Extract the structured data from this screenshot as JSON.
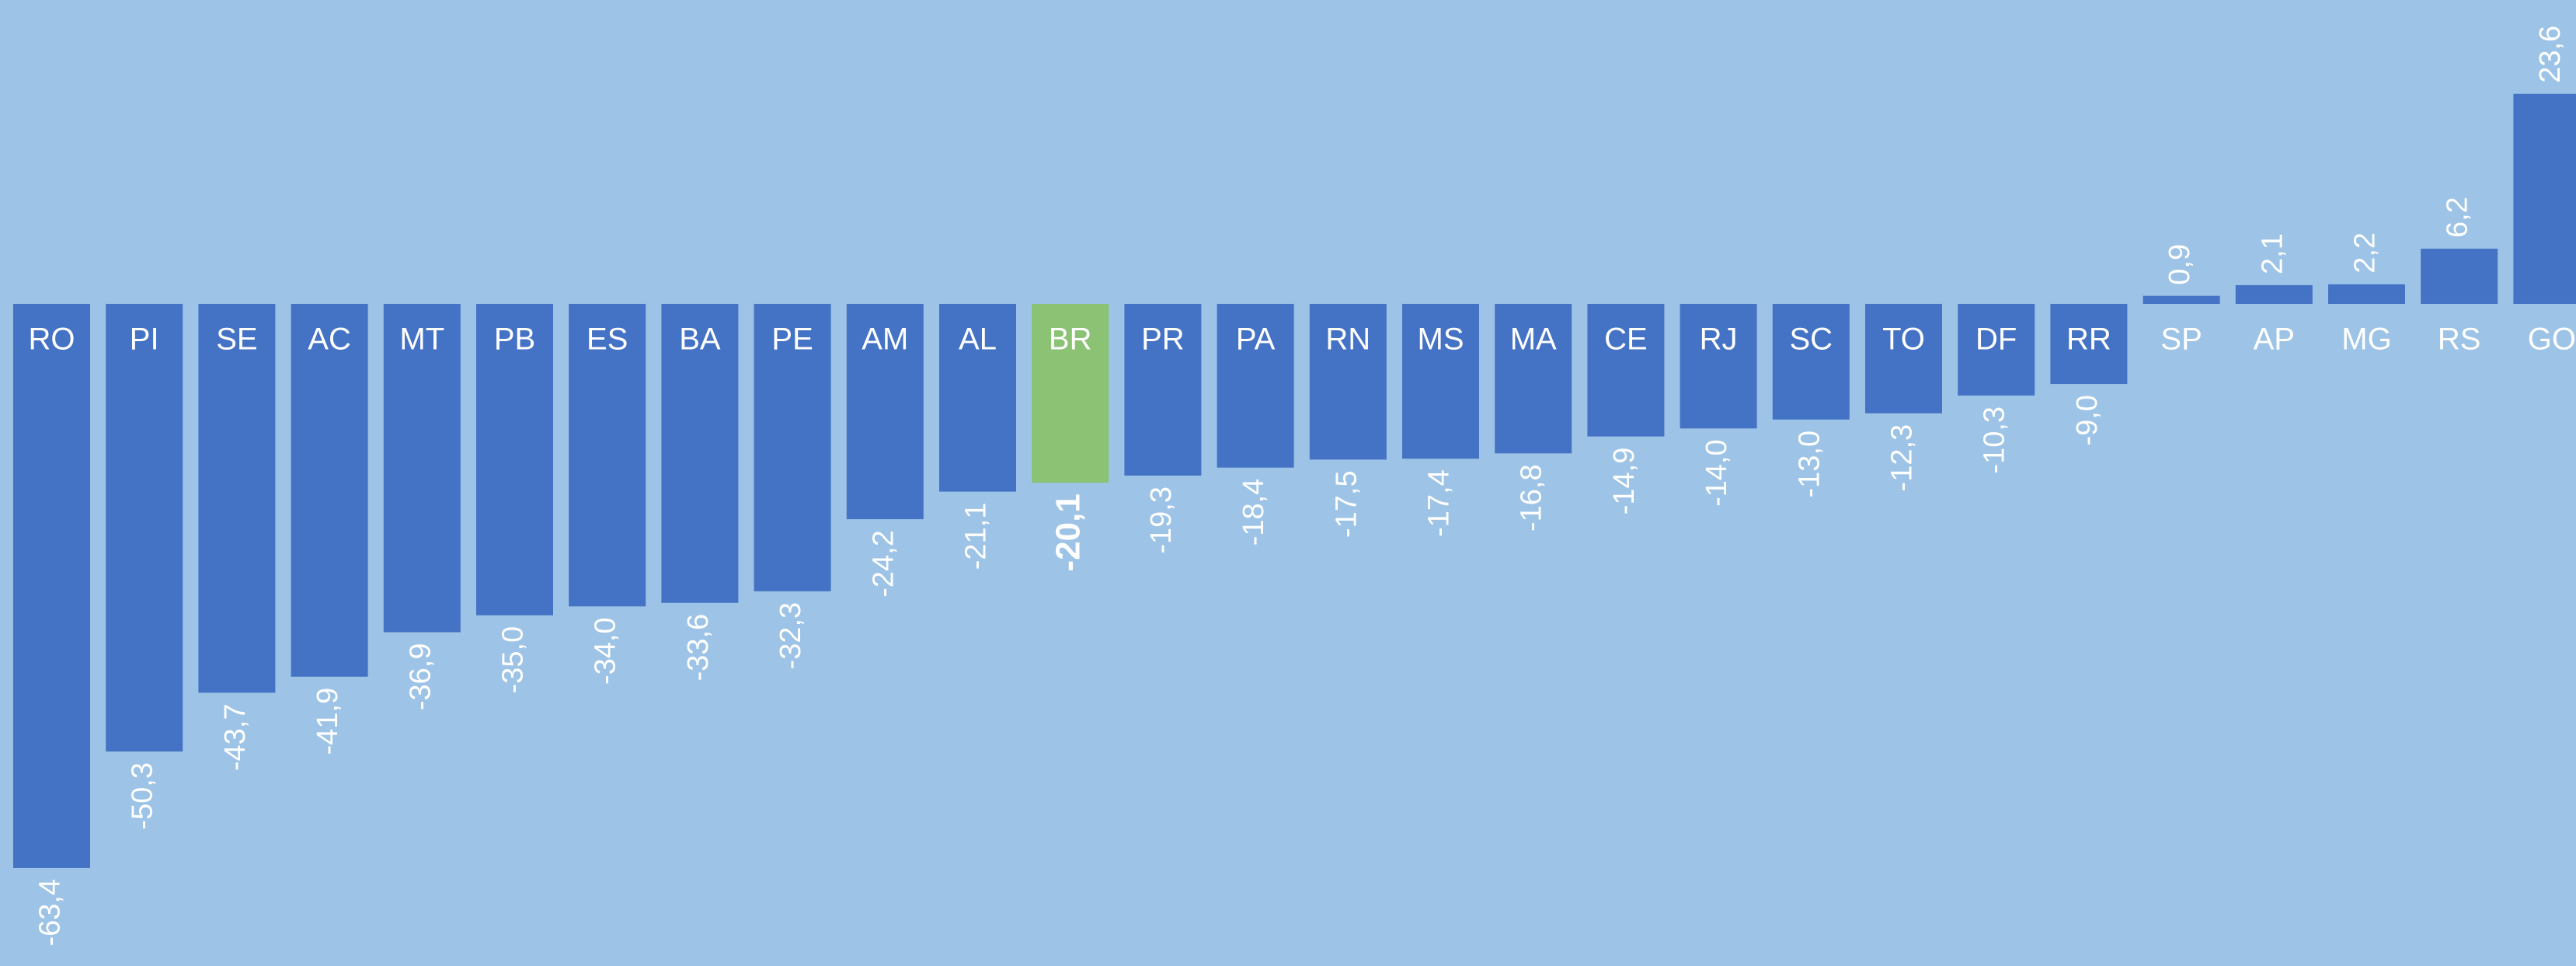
{
  "chart_data": {
    "type": "bar",
    "categories": [
      "RO",
      "PI",
      "SE",
      "AC",
      "MT",
      "PB",
      "ES",
      "BA",
      "PE",
      "AM",
      "AL",
      "BR",
      "PR",
      "PA",
      "RN",
      "MS",
      "MA",
      "CE",
      "RJ",
      "SC",
      "TO",
      "DF",
      "RR",
      "SP",
      "AP",
      "MG",
      "RS",
      "GO"
    ],
    "values": [
      -63.4,
      -50.3,
      -43.7,
      -41.9,
      -36.9,
      -35.0,
      -34.0,
      -33.6,
      -32.3,
      -24.2,
      -21.1,
      -20.1,
      -19.3,
      -18.4,
      -17.5,
      -17.4,
      -16.8,
      -14.9,
      -14.0,
      -13.0,
      -12.3,
      -10.3,
      -9.0,
      0.9,
      2.1,
      2.2,
      6.2,
      23.6
    ],
    "value_labels": [
      "-63,4",
      "-50,3",
      "-43,7",
      "-41,9",
      "-36,9",
      "-35,0",
      "-34,0",
      "-33,6",
      "-32,3",
      "-24,2",
      "-21,1",
      "-20,1",
      "-19,3",
      "-18,4",
      "-17,5",
      "-17,4",
      "-16,8",
      "-14,9",
      "-14,0",
      "-13,0",
      "-12,3",
      "-10,3",
      "-9,0",
      "0,9",
      "2,1",
      "2,2",
      "6,2",
      "23,6"
    ],
    "color": "#4472c4",
    "colors": [
      "#4472c4",
      "#4472c4",
      "#4472c4",
      "#4472c4",
      "#4472c4",
      "#4472c4",
      "#4472c4",
      "#4472c4",
      "#4472c4",
      "#4472c4",
      "#4472c4",
      "#8bc273",
      "#4472c4",
      "#4472c4",
      "#4472c4",
      "#4472c4",
      "#4472c4",
      "#4472c4",
      "#4472c4",
      "#4472c4",
      "#4472c4",
      "#4472c4",
      "#4472c4",
      "#4472c4",
      "#4472c4",
      "#4472c4",
      "#4472c4",
      "#4472c4"
    ],
    "background": "#9dc3e6"
  }
}
